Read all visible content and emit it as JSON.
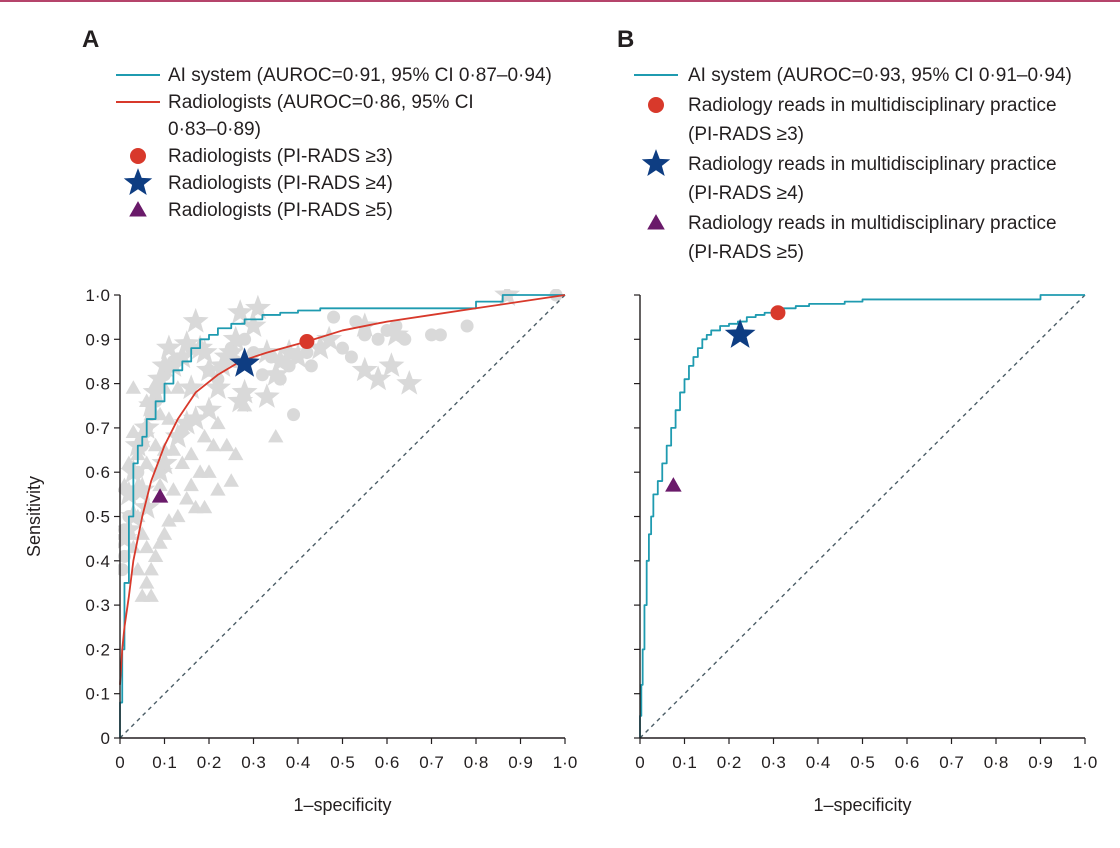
{
  "colors": {
    "ai": "#1f9bb0",
    "rad": "#d8392b",
    "star": "#0e3d82",
    "tri": "#6a1a6a",
    "gray": "#d9d9d9",
    "axis": "#231f20",
    "diag": "#4b5d66"
  },
  "chart_data": [
    {
      "panel_label": "A",
      "type": "line",
      "xlabel": "1–specificity",
      "ylabel": "Sensitivity",
      "xlim": [
        0,
        1
      ],
      "ylim": [
        0,
        1
      ],
      "x_ticks": [
        "0",
        "0·1",
        "0·2",
        "0·3",
        "0·4",
        "0·5",
        "0·6",
        "0·7",
        "0·8",
        "0·9",
        "1·0"
      ],
      "y_ticks": [
        "0",
        "0·1",
        "0·2",
        "0·3",
        "0·4",
        "0·5",
        "0·6",
        "0·7",
        "0·8",
        "0·9",
        "1·0"
      ],
      "grid": false,
      "legend_position": "top",
      "legend": [
        {
          "kind": "line",
          "color": "ai",
          "lines": [
            "AI system (AUROC=0·91, 95% CI 0·87–0·94)"
          ]
        },
        {
          "kind": "line",
          "color": "rad",
          "lines": [
            "Radiologists (AUROC=0·86, 95% CI",
            "0·83–0·89)"
          ]
        },
        {
          "kind": "circle",
          "color": "rad",
          "lines": [
            "Radiologists (PI-RADS ≥3)"
          ]
        },
        {
          "kind": "star",
          "color": "star",
          "lines": [
            "Radiologists (PI-RADS ≥4)"
          ]
        },
        {
          "kind": "triangle",
          "color": "tri",
          "lines": [
            "Radiologists (PI-RADS ≥5)"
          ]
        }
      ],
      "series": [
        {
          "name": "AI system",
          "color": "ai",
          "style": "step",
          "x": [
            0,
            0.005,
            0.01,
            0.02,
            0.03,
            0.04,
            0.05,
            0.06,
            0.08,
            0.1,
            0.12,
            0.14,
            0.16,
            0.18,
            0.2,
            0.22,
            0.25,
            0.28,
            0.32,
            0.36,
            0.4,
            0.45,
            0.5,
            0.55,
            0.62,
            0.7,
            0.8,
            0.86,
            0.9,
            1.0
          ],
          "y": [
            0,
            0.08,
            0.2,
            0.35,
            0.5,
            0.62,
            0.66,
            0.68,
            0.72,
            0.76,
            0.8,
            0.83,
            0.85,
            0.88,
            0.9,
            0.91,
            0.925,
            0.935,
            0.945,
            0.955,
            0.96,
            0.965,
            0.97,
            0.97,
            0.97,
            0.97,
            0.97,
            0.985,
            1.0,
            1.0
          ]
        },
        {
          "name": "Radiologists",
          "color": "rad",
          "style": "smooth",
          "x": [
            0,
            0.005,
            0.01,
            0.02,
            0.03,
            0.05,
            0.07,
            0.1,
            0.13,
            0.17,
            0.22,
            0.27,
            0.33,
            0.42,
            0.5,
            0.6,
            0.7,
            0.8,
            0.9,
            1.0
          ],
          "y": [
            0.12,
            0.2,
            0.25,
            0.32,
            0.4,
            0.5,
            0.58,
            0.66,
            0.72,
            0.78,
            0.82,
            0.85,
            0.87,
            0.895,
            0.92,
            0.94,
            0.955,
            0.97,
            0.985,
            1.0
          ]
        }
      ],
      "points": [
        {
          "name": "Radiologists (PI-RADS ≥3)",
          "shape": "circle",
          "color": "rad",
          "x": 0.42,
          "y": 0.895
        },
        {
          "name": "Radiologists (PI-RADS ≥4)",
          "shape": "star",
          "color": "star",
          "x": 0.28,
          "y": 0.845
        },
        {
          "name": "Radiologists (PI-RADS ≥5)",
          "shape": "triangle",
          "color": "tri",
          "x": 0.09,
          "y": 0.545
        }
      ],
      "background_points": {
        "color": "gray",
        "circles": [
          [
            0.48,
            0.95
          ],
          [
            0.53,
            0.94
          ],
          [
            0.55,
            0.91
          ],
          [
            0.6,
            0.92
          ],
          [
            0.62,
            0.93
          ],
          [
            0.64,
            0.9
          ],
          [
            0.7,
            0.91
          ],
          [
            0.72,
            0.91
          ],
          [
            0.78,
            0.93
          ],
          [
            0.42,
            0.87
          ],
          [
            0.43,
            0.84
          ],
          [
            0.38,
            0.84
          ],
          [
            0.36,
            0.81
          ],
          [
            0.39,
            0.73
          ],
          [
            0.5,
            0.88
          ],
          [
            0.52,
            0.86
          ],
          [
            0.58,
            0.9
          ],
          [
            0.98,
            1.0
          ],
          [
            0.16,
            0.88
          ],
          [
            0.12,
            0.85
          ],
          [
            0.1,
            0.82
          ],
          [
            0.08,
            0.76
          ],
          [
            0.07,
            0.73
          ],
          [
            0.06,
            0.7
          ],
          [
            0.05,
            0.66
          ],
          [
            0.04,
            0.6
          ],
          [
            0.03,
            0.55
          ],
          [
            0.02,
            0.5
          ],
          [
            0.01,
            0.47
          ],
          [
            0.01,
            0.41
          ],
          [
            0.005,
            0.38
          ],
          [
            0.3,
            0.87
          ],
          [
            0.28,
            0.9
          ],
          [
            0.26,
            0.85
          ],
          [
            0.2,
            0.83
          ],
          [
            0.22,
            0.81
          ],
          [
            0.25,
            0.88
          ],
          [
            0.32,
            0.82
          ],
          [
            0.34,
            0.86
          ]
        ],
        "stars": [
          [
            0.87,
            1.0
          ],
          [
            0.62,
            0.91
          ],
          [
            0.55,
            0.93
          ],
          [
            0.47,
            0.9
          ],
          [
            0.45,
            0.88
          ],
          [
            0.4,
            0.86
          ],
          [
            0.38,
            0.87
          ],
          [
            0.36,
            0.85
          ],
          [
            0.35,
            0.82
          ],
          [
            0.33,
            0.87
          ],
          [
            0.3,
            0.93
          ],
          [
            0.27,
            0.96
          ],
          [
            0.26,
            0.9
          ],
          [
            0.25,
            0.87
          ],
          [
            0.24,
            0.86
          ],
          [
            0.23,
            0.84
          ],
          [
            0.2,
            0.83
          ],
          [
            0.19,
            0.87
          ],
          [
            0.18,
            0.88
          ],
          [
            0.17,
            0.94
          ],
          [
            0.15,
            0.89
          ],
          [
            0.14,
            0.86
          ],
          [
            0.12,
            0.84
          ],
          [
            0.11,
            0.88
          ],
          [
            0.1,
            0.84
          ],
          [
            0.09,
            0.81
          ],
          [
            0.08,
            0.78
          ],
          [
            0.07,
            0.75
          ],
          [
            0.06,
            0.7
          ],
          [
            0.05,
            0.68
          ],
          [
            0.04,
            0.66
          ],
          [
            0.03,
            0.6
          ],
          [
            0.02,
            0.55
          ],
          [
            0.02,
            0.47
          ],
          [
            0.01,
            0.45
          ],
          [
            0.04,
            0.56
          ],
          [
            0.06,
            0.52
          ],
          [
            0.16,
            0.79
          ],
          [
            0.22,
            0.79
          ],
          [
            0.28,
            0.78
          ],
          [
            0.33,
            0.77
          ],
          [
            0.27,
            0.76
          ],
          [
            0.2,
            0.74
          ],
          [
            0.17,
            0.72
          ],
          [
            0.15,
            0.71
          ],
          [
            0.13,
            0.68
          ],
          [
            0.09,
            0.6
          ],
          [
            0.1,
            0.62
          ],
          [
            0.05,
            0.56
          ],
          [
            0.03,
            0.5
          ],
          [
            0.55,
            0.83
          ],
          [
            0.58,
            0.81
          ],
          [
            0.61,
            0.84
          ],
          [
            0.65,
            0.8
          ],
          [
            0.31,
            0.97
          ]
        ],
        "triangles": [
          [
            0.03,
            0.79
          ],
          [
            0.06,
            0.76
          ],
          [
            0.08,
            0.8
          ],
          [
            0.1,
            0.79
          ],
          [
            0.13,
            0.79
          ],
          [
            0.07,
            0.73
          ],
          [
            0.09,
            0.73
          ],
          [
            0.11,
            0.72
          ],
          [
            0.14,
            0.7
          ],
          [
            0.12,
            0.65
          ],
          [
            0.08,
            0.66
          ],
          [
            0.1,
            0.65
          ],
          [
            0.14,
            0.62
          ],
          [
            0.16,
            0.57
          ],
          [
            0.18,
            0.6
          ],
          [
            0.2,
            0.6
          ],
          [
            0.15,
            0.54
          ],
          [
            0.17,
            0.52
          ],
          [
            0.19,
            0.52
          ],
          [
            0.22,
            0.56
          ],
          [
            0.25,
            0.58
          ],
          [
            0.26,
            0.64
          ],
          [
            0.24,
            0.66
          ],
          [
            0.13,
            0.5
          ],
          [
            0.11,
            0.49
          ],
          [
            0.1,
            0.46
          ],
          [
            0.09,
            0.44
          ],
          [
            0.08,
            0.41
          ],
          [
            0.07,
            0.38
          ],
          [
            0.06,
            0.35
          ],
          [
            0.07,
            0.32
          ],
          [
            0.05,
            0.32
          ],
          [
            0.04,
            0.38
          ],
          [
            0.03,
            0.43
          ],
          [
            0.02,
            0.46
          ],
          [
            0.04,
            0.5
          ],
          [
            0.05,
            0.46
          ],
          [
            0.06,
            0.43
          ],
          [
            0.12,
            0.56
          ],
          [
            0.09,
            0.57
          ],
          [
            0.06,
            0.62
          ],
          [
            0.04,
            0.64
          ],
          [
            0.28,
            0.75
          ],
          [
            0.22,
            0.71
          ],
          [
            0.19,
            0.68
          ],
          [
            0.21,
            0.66
          ],
          [
            0.16,
            0.64
          ],
          [
            0.03,
            0.69
          ],
          [
            0.02,
            0.62
          ],
          [
            0.01,
            0.57
          ],
          [
            0.35,
            0.68
          ]
        ]
      }
    },
    {
      "panel_label": "B",
      "type": "line",
      "xlabel": "1–specificity",
      "ylabel": "",
      "xlim": [
        0,
        1
      ],
      "ylim": [
        0,
        1
      ],
      "x_ticks": [
        "0",
        "0·1",
        "0·2",
        "0·3",
        "0·4",
        "0·5",
        "0·6",
        "0·7",
        "0·8",
        "0·9",
        "1·0"
      ],
      "grid": false,
      "legend_position": "top",
      "legend": [
        {
          "kind": "line",
          "color": "ai",
          "lines": [
            "AI system (AUROC=0·93, 95% CI 0·91–0·94)"
          ]
        },
        {
          "kind": "circle",
          "color": "rad",
          "lines": [
            "Radiology reads in multidisciplinary practice",
            "(PI-RADS ≥3)"
          ]
        },
        {
          "kind": "star",
          "color": "star",
          "lines": [
            "Radiology reads in multidisciplinary practice",
            "(PI-RADS ≥4)"
          ]
        },
        {
          "kind": "triangle",
          "color": "tri",
          "lines": [
            "Radiology reads in multidisciplinary practice",
            "(PI-RADS ≥5)"
          ]
        }
      ],
      "series": [
        {
          "name": "AI system",
          "color": "ai",
          "style": "step",
          "x": [
            0,
            0.003,
            0.006,
            0.01,
            0.015,
            0.02,
            0.025,
            0.03,
            0.04,
            0.05,
            0.06,
            0.07,
            0.08,
            0.09,
            0.1,
            0.11,
            0.12,
            0.13,
            0.14,
            0.15,
            0.16,
            0.18,
            0.2,
            0.22,
            0.24,
            0.26,
            0.28,
            0.3,
            0.32,
            0.35,
            0.38,
            0.42,
            0.46,
            0.5,
            0.55,
            0.6,
            0.7,
            0.8,
            0.9,
            0.95,
            1.0
          ],
          "y": [
            0,
            0.05,
            0.12,
            0.2,
            0.3,
            0.4,
            0.46,
            0.5,
            0.55,
            0.58,
            0.62,
            0.66,
            0.7,
            0.74,
            0.78,
            0.81,
            0.84,
            0.86,
            0.88,
            0.9,
            0.91,
            0.92,
            0.93,
            0.935,
            0.94,
            0.95,
            0.955,
            0.96,
            0.965,
            0.97,
            0.975,
            0.98,
            0.98,
            0.985,
            0.99,
            0.99,
            0.99,
            0.99,
            0.99,
            1.0,
            1.0
          ]
        }
      ],
      "points": [
        {
          "name": "Radiology reads in multidisciplinary practice (PI-RADS ≥3)",
          "shape": "circle",
          "color": "rad",
          "x": 0.31,
          "y": 0.96
        },
        {
          "name": "Radiology reads in multidisciplinary practice (PI-RADS ≥4)",
          "shape": "star",
          "color": "star",
          "x": 0.225,
          "y": 0.91
        },
        {
          "name": "Radiology reads in multidisciplinary practice (PI-RADS ≥5)",
          "shape": "triangle",
          "color": "tri",
          "x": 0.075,
          "y": 0.57
        }
      ]
    }
  ]
}
